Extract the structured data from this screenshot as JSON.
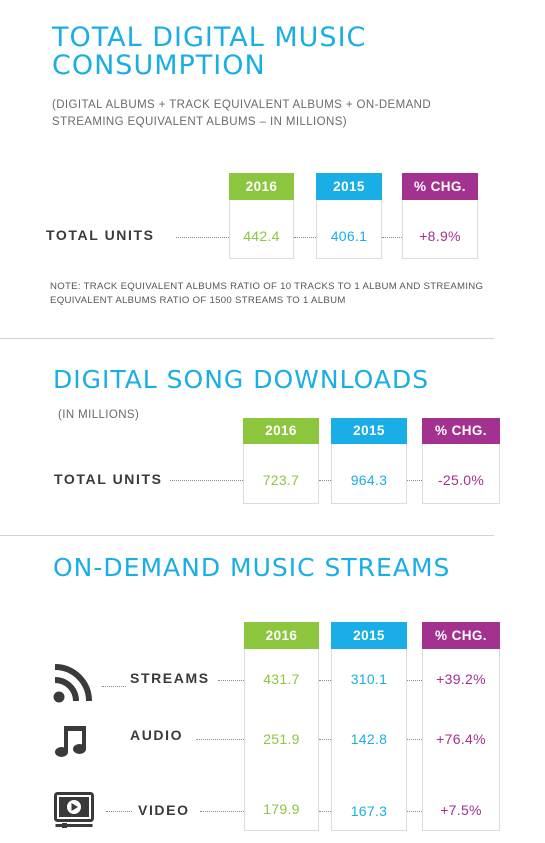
{
  "sections": {
    "consumption": {
      "title_line1": "TOTAL DIGITAL MUSIC",
      "title_line2": "CONSUMPTION",
      "subtitle_line1": "(DIGITAL ALBUMS + TRACK EQUIVALENT ALBUMS + ON-DEMAND",
      "subtitle_line2": "STREAMING EQUIVALENT ALBUMS – IN MILLIONS)",
      "headers": [
        "2016",
        "2015",
        "% CHG."
      ],
      "row": {
        "label": "TOTAL UNITS",
        "v2016": "442.4",
        "v2015": "406.1",
        "chg": "+8.9%"
      },
      "note_line1": "NOTE: TRACK EQUIVALENT ALBUMS RATIO OF 10 TRACKS TO 1 ALBUM AND STREAMING",
      "note_line2": "EQUIVALENT ALBUMS RATIO OF 1500 STREAMS TO 1 ALBUM"
    },
    "downloads": {
      "title": "DIGITAL SONG DOWNLOADS",
      "subtitle": "(IN MILLIONS)",
      "headers": [
        "2016",
        "2015",
        "% CHG."
      ],
      "row": {
        "label": "TOTAL UNITS",
        "v2016": "723.7",
        "v2015": "964.3",
        "chg": "-25.0%"
      }
    },
    "streams": {
      "title": "ON-DEMAND MUSIC STREAMS",
      "headers": [
        "2016",
        "2015",
        "% CHG."
      ],
      "rows": [
        {
          "label": "STREAMS",
          "icon": "streaming-icon",
          "v2016": "431.7",
          "v2015": "310.1",
          "chg": "+39.2%"
        },
        {
          "label": "AUDIO",
          "icon": "music-note-icon",
          "v2016": "251.9",
          "v2015": "142.8",
          "chg": "+76.4%"
        },
        {
          "label": "VIDEO",
          "icon": "video-player-icon",
          "v2016": "179.9",
          "v2015": "167.3",
          "chg": "+7.5%"
        }
      ]
    }
  },
  "colors": {
    "blue_title": "#19aee6",
    "green_2016": "#8cc63e",
    "blue_2015": "#19aee6",
    "purple_chg": "#a3318f"
  }
}
